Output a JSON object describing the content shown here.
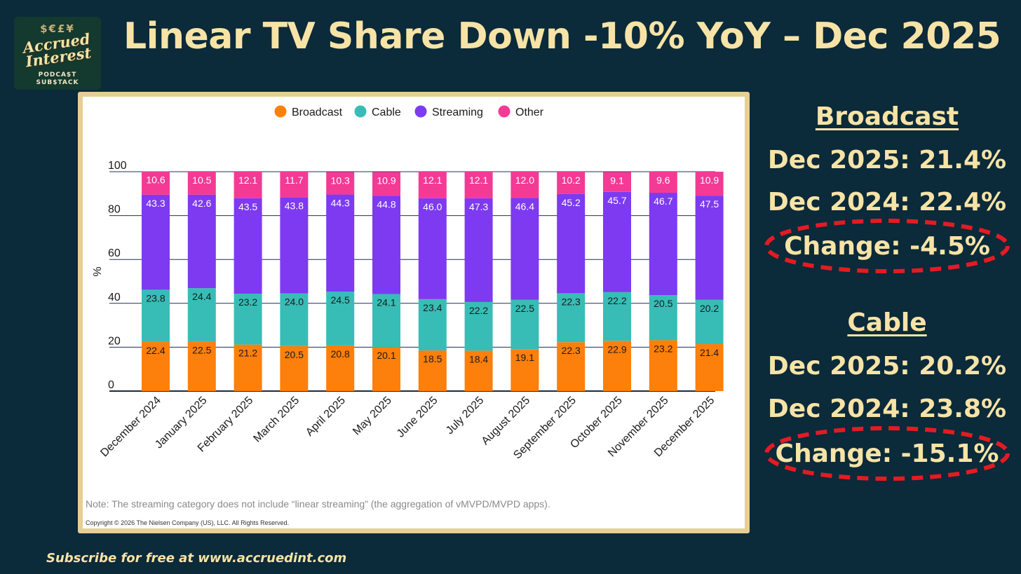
{
  "title": "Linear TV Share Down -10% YoY – Dec 2025",
  "logo": {
    "symbols": "$€£¥",
    "line1": "Accrued",
    "line2": "Interest",
    "sub1": "PODCA$T",
    "sub2": "SUB$TACK"
  },
  "chart_data": {
    "type": "bar",
    "stacked": true,
    "ylabel": "%",
    "ylim": [
      0,
      100
    ],
    "yticks": [
      0,
      20,
      40,
      60,
      80,
      100
    ],
    "legend_position": "top-center",
    "categories": [
      "December 2024",
      "January 2025",
      "February 2025",
      "March 2025",
      "April 2025",
      "May 2025",
      "June 2025",
      "July 2025",
      "August 2025",
      "September 2025",
      "October 2025",
      "November 2025",
      "December 2025"
    ],
    "series": [
      {
        "name": "Broadcast",
        "color": "#fd7f0c",
        "label_color": "#1a1a1a",
        "values": [
          22.4,
          22.5,
          21.2,
          20.5,
          20.8,
          20.1,
          18.5,
          18.4,
          19.1,
          22.3,
          22.9,
          23.2,
          21.4
        ]
      },
      {
        "name": "Cable",
        "color": "#37bdb6",
        "label_color": "#1a1a1a",
        "values": [
          23.8,
          24.4,
          23.2,
          24.0,
          24.5,
          24.1,
          23.4,
          22.2,
          22.5,
          22.3,
          22.2,
          20.5,
          20.2
        ]
      },
      {
        "name": "Streaming",
        "color": "#7d3af0",
        "label_color": "#ffffff",
        "values": [
          43.3,
          42.6,
          43.5,
          43.8,
          44.3,
          44.8,
          46.0,
          47.3,
          46.4,
          45.2,
          45.7,
          46.7,
          47.5
        ]
      },
      {
        "name": "Other",
        "color": "#f33a95",
        "label_color": "#ffffff",
        "values": [
          10.6,
          10.5,
          12.1,
          11.7,
          10.3,
          10.9,
          12.1,
          12.1,
          12.0,
          10.2,
          9.1,
          9.6,
          10.9
        ]
      }
    ],
    "note": "Note: The streaming category does not include “linear streaming” (the aggregation of vMVPD/MVPD apps).",
    "copyright": "Copyright © 2026 The Nielsen Company (US), LLC. All Rights Reserved."
  },
  "stats": {
    "broadcast": {
      "heading": "Broadcast",
      "current": "Dec 2025: 21.4%",
      "prior": "Dec 2024: 22.4%",
      "change": "Change: -4.5%"
    },
    "cable": {
      "heading": "Cable",
      "current": "Dec 2025: 20.2%",
      "prior": "Dec 2024: 23.8%",
      "change": "Change: -15.1%"
    }
  },
  "colors": {
    "background": "#0b2a3a",
    "title_text": "#f7e3a6",
    "frame": "#e6cf93",
    "highlight_circle": "#e31b23"
  },
  "footer": "Subscribe for free at www.accruedint.com"
}
